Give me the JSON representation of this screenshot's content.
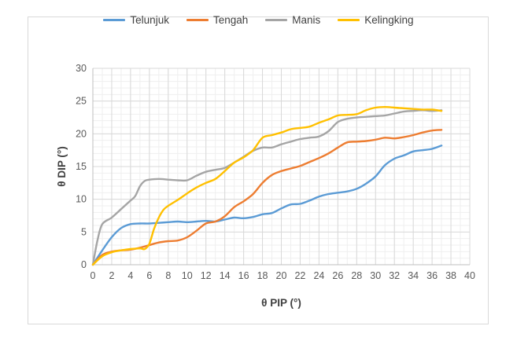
{
  "chart_data": {
    "type": "line",
    "title": "",
    "xlabel": "θ PIP (°)",
    "ylabel": "θ DIP (°)",
    "xlim": [
      0,
      40
    ],
    "ylim": [
      0,
      30
    ],
    "x_ticks": [
      0,
      2,
      4,
      6,
      8,
      10,
      12,
      14,
      16,
      18,
      20,
      22,
      24,
      26,
      28,
      30,
      32,
      34,
      36,
      38,
      40
    ],
    "y_ticks": [
      0,
      5,
      10,
      15,
      20,
      25,
      30
    ],
    "grid": true,
    "legend_position": "top",
    "series": [
      {
        "name": "Telunjuk",
        "color": "#5b9bd5",
        "points": [
          [
            0,
            0
          ],
          [
            1,
            2.2
          ],
          [
            2,
            4.2
          ],
          [
            3,
            5.6
          ],
          [
            4,
            6.2
          ],
          [
            5,
            6.3
          ],
          [
            6,
            6.3
          ],
          [
            7,
            6.4
          ],
          [
            8,
            6.5
          ],
          [
            9,
            6.6
          ],
          [
            10,
            6.5
          ],
          [
            11,
            6.6
          ],
          [
            12,
            6.7
          ],
          [
            13,
            6.6
          ],
          [
            14,
            6.9
          ],
          [
            15,
            7.2
          ],
          [
            16,
            7.1
          ],
          [
            17,
            7.3
          ],
          [
            18,
            7.7
          ],
          [
            19,
            7.9
          ],
          [
            20,
            8.6
          ],
          [
            21,
            9.2
          ],
          [
            22,
            9.3
          ],
          [
            23,
            9.8
          ],
          [
            24,
            10.4
          ],
          [
            25,
            10.8
          ],
          [
            26,
            11.0
          ],
          [
            27,
            11.2
          ],
          [
            28,
            11.6
          ],
          [
            29,
            12.4
          ],
          [
            30,
            13.5
          ],
          [
            31,
            15.2
          ],
          [
            32,
            16.2
          ],
          [
            33,
            16.7
          ],
          [
            34,
            17.3
          ],
          [
            35,
            17.5
          ],
          [
            36,
            17.7
          ],
          [
            37,
            18.2
          ]
        ]
      },
      {
        "name": "Tengah",
        "color": "#ed7d31",
        "points": [
          [
            0,
            0
          ],
          [
            1,
            1.5
          ],
          [
            2,
            2.0
          ],
          [
            3,
            2.2
          ],
          [
            4,
            2.3
          ],
          [
            5,
            2.6
          ],
          [
            6,
            3.0
          ],
          [
            7,
            3.4
          ],
          [
            8,
            3.6
          ],
          [
            9,
            3.7
          ],
          [
            10,
            4.2
          ],
          [
            11,
            5.2
          ],
          [
            12,
            6.3
          ],
          [
            13,
            6.6
          ],
          [
            14,
            7.4
          ],
          [
            15,
            8.8
          ],
          [
            16,
            9.7
          ],
          [
            17,
            10.8
          ],
          [
            18,
            12.5
          ],
          [
            19,
            13.7
          ],
          [
            20,
            14.3
          ],
          [
            21,
            14.7
          ],
          [
            22,
            15.1
          ],
          [
            23,
            15.7
          ],
          [
            24,
            16.3
          ],
          [
            25,
            17.0
          ],
          [
            26,
            17.9
          ],
          [
            27,
            18.7
          ],
          [
            28,
            18.8
          ],
          [
            29,
            18.9
          ],
          [
            30,
            19.1
          ],
          [
            31,
            19.4
          ],
          [
            32,
            19.3
          ],
          [
            33,
            19.5
          ],
          [
            34,
            19.8
          ],
          [
            35,
            20.2
          ],
          [
            36,
            20.5
          ],
          [
            37,
            20.6
          ]
        ]
      },
      {
        "name": "Manis",
        "color": "#a5a5a5",
        "points": [
          [
            0,
            0
          ],
          [
            0.5,
            3.8
          ],
          [
            1,
            6.2
          ],
          [
            2,
            7.2
          ],
          [
            3,
            8.5
          ],
          [
            4,
            9.8
          ],
          [
            4.5,
            10.5
          ],
          [
            5,
            12.0
          ],
          [
            5.5,
            12.8
          ],
          [
            6,
            13.0
          ],
          [
            7,
            13.1
          ],
          [
            8,
            13.0
          ],
          [
            9,
            12.9
          ],
          [
            10,
            12.9
          ],
          [
            11,
            13.6
          ],
          [
            12,
            14.2
          ],
          [
            13,
            14.5
          ],
          [
            14,
            14.8
          ],
          [
            15,
            15.6
          ],
          [
            16,
            16.5
          ],
          [
            17,
            17.4
          ],
          [
            18,
            17.9
          ],
          [
            19,
            17.9
          ],
          [
            20,
            18.4
          ],
          [
            21,
            18.8
          ],
          [
            22,
            19.2
          ],
          [
            23,
            19.4
          ],
          [
            24,
            19.6
          ],
          [
            25,
            20.4
          ],
          [
            26,
            21.8
          ],
          [
            27,
            22.3
          ],
          [
            28,
            22.5
          ],
          [
            29,
            22.6
          ],
          [
            30,
            22.7
          ],
          [
            31,
            22.8
          ],
          [
            32,
            23.1
          ],
          [
            33,
            23.4
          ],
          [
            34,
            23.5
          ],
          [
            35,
            23.6
          ],
          [
            36,
            23.5
          ],
          [
            37,
            23.6
          ]
        ]
      },
      {
        "name": "Kelingking",
        "color": "#ffc000",
        "points": [
          [
            0,
            0
          ],
          [
            1,
            1.3
          ],
          [
            2,
            1.9
          ],
          [
            3,
            2.2
          ],
          [
            4,
            2.4
          ],
          [
            5,
            2.5
          ],
          [
            5.5,
            2.4
          ],
          [
            6,
            3.2
          ],
          [
            6.5,
            5.5
          ],
          [
            7,
            7.2
          ],
          [
            7.5,
            8.4
          ],
          [
            8,
            9.0
          ],
          [
            9,
            9.9
          ],
          [
            10,
            10.9
          ],
          [
            11,
            11.8
          ],
          [
            12,
            12.5
          ],
          [
            13,
            13.1
          ],
          [
            14,
            14.3
          ],
          [
            15,
            15.6
          ],
          [
            16,
            16.4
          ],
          [
            17,
            17.5
          ],
          [
            18,
            19.4
          ],
          [
            19,
            19.8
          ],
          [
            20,
            20.2
          ],
          [
            21,
            20.7
          ],
          [
            22,
            20.9
          ],
          [
            23,
            21.1
          ],
          [
            24,
            21.7
          ],
          [
            25,
            22.2
          ],
          [
            26,
            22.8
          ],
          [
            27,
            22.9
          ],
          [
            28,
            23.0
          ],
          [
            29,
            23.6
          ],
          [
            30,
            24.0
          ],
          [
            31,
            24.1
          ],
          [
            32,
            24.0
          ],
          [
            33,
            23.9
          ],
          [
            34,
            23.8
          ],
          [
            35,
            23.7
          ],
          [
            36,
            23.7
          ],
          [
            37,
            23.5
          ]
        ]
      }
    ]
  }
}
